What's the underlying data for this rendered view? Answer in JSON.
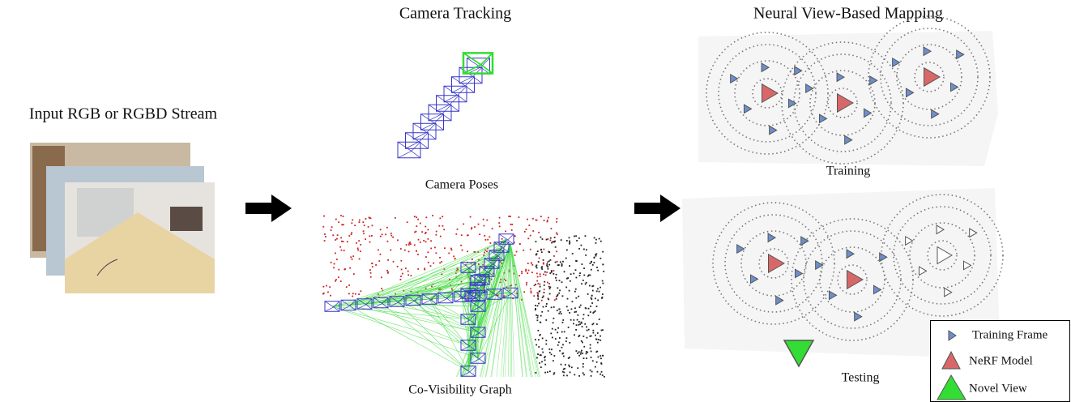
{
  "input": {
    "title": "Input RGB or RGBD Stream"
  },
  "tracking": {
    "title": "Camera Tracking",
    "poses_label": "Camera Poses",
    "graph_label": "Co-Visibility Graph"
  },
  "mapping": {
    "title": "Neural View-Based Mapping",
    "training_label": "Training",
    "testing_label": "Testing"
  },
  "legend": {
    "items": [
      "Training Frame",
      "NeRF Model",
      "Novel View"
    ]
  }
}
